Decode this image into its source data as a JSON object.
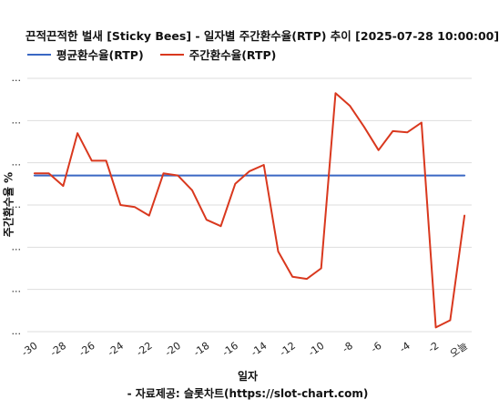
{
  "chart_data": {
    "type": "line",
    "title": "끈적끈적한 벌새 [Sticky Bees] - 일자별 주간환수율(RTP) 추이 [2025-07-28 10:00:00]",
    "xlabel": "일자",
    "ylabel": "주간환수율 %",
    "source": "- 자료제공: 슬롯차트(https://slot-chart.com)",
    "x_ticks": [
      "-30",
      "-28",
      "-26",
      "-24",
      "-22",
      "-20",
      "-18",
      "-16",
      "-14",
      "-12",
      "-10",
      "-8",
      "-6",
      "-4",
      "-2",
      "오늘"
    ],
    "x_tick_values": [
      -30,
      -28,
      -26,
      -24,
      -22,
      -20,
      -18,
      -16,
      -14,
      -12,
      -10,
      -8,
      -6,
      -4,
      -2,
      0
    ],
    "y_ticks": [
      "...",
      "...",
      "...",
      "...",
      "...",
      "...",
      "..."
    ],
    "ylim": [
      0,
      6
    ],
    "grid": true,
    "legend_position": "top-left",
    "series": [
      {
        "name": "평균환수율(RTP)",
        "color": "#3a68c4",
        "x": [
          -30,
          0
        ],
        "y": [
          3.7,
          3.7
        ]
      },
      {
        "name": "주간환수율(RTP)",
        "color": "#d9381e",
        "x": [
          -30,
          -29,
          -28,
          -27,
          -26,
          -25,
          -24,
          -23,
          -22,
          -21,
          -20,
          -19,
          -18,
          -17,
          -16,
          -15,
          -14,
          -13,
          -12,
          -11,
          -10,
          -9,
          -8,
          -7,
          -6,
          -5,
          -4,
          -3,
          -2,
          -1,
          0
        ],
        "y": [
          3.75,
          3.75,
          3.45,
          4.7,
          4.05,
          4.05,
          3.0,
          2.95,
          2.75,
          3.75,
          3.7,
          3.35,
          2.65,
          2.5,
          3.5,
          3.8,
          3.95,
          1.9,
          1.3,
          1.25,
          1.5,
          5.65,
          5.35,
          4.85,
          4.3,
          4.75,
          4.72,
          4.95,
          0.1,
          0.27,
          2.75
        ]
      }
    ]
  }
}
